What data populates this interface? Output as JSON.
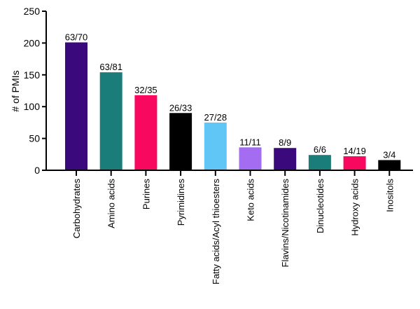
{
  "chart_data": {
    "type": "bar",
    "ylabel": "# of PMIs",
    "xlabel": "",
    "ylim": [
      0,
      250
    ],
    "yticks": [
      "0",
      "50",
      "100",
      "150",
      "200",
      "250"
    ],
    "grid": false,
    "categories": [
      "Carbohydrates",
      "Amino acids",
      "Purines",
      "Pyrimidines",
      "Fatty acids/Acyl thioesters",
      "Keto acids",
      "Flavins/Nicotinamides",
      "Dinucleotides",
      "Hydroxy acids",
      "Inositols"
    ],
    "values": [
      201,
      154,
      118,
      90,
      75,
      36,
      35,
      24,
      22,
      16
    ],
    "data_labels": [
      "63/70",
      "63/81",
      "32/35",
      "26/33",
      "27/28",
      "11/11",
      "8/9",
      "6/6",
      "14/19",
      "3/4"
    ],
    "colors": [
      "#3a0a7c",
      "#1b7d7a",
      "#f8085e",
      "#000000",
      "#5fc6f6",
      "#a46cf0",
      "#3a0a7c",
      "#1b7d7a",
      "#f8085e",
      "#000000"
    ]
  }
}
